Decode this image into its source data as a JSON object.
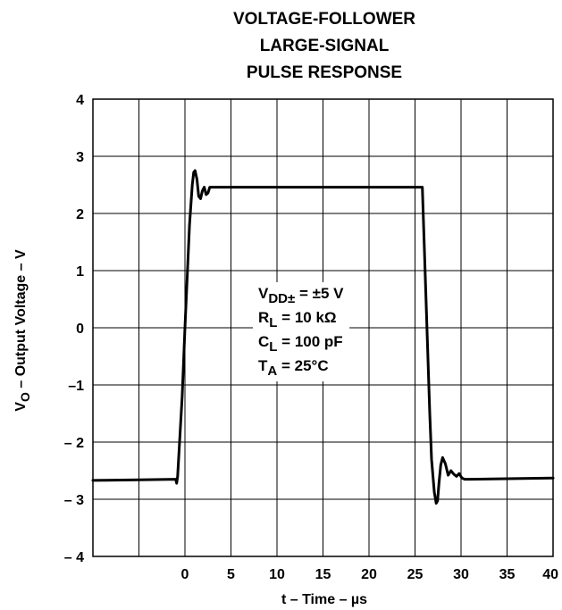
{
  "chart_data": {
    "type": "line",
    "title_lines": [
      "VOLTAGE-FOLLOWER",
      "LARGE-SIGNAL",
      "PULSE RESPONSE"
    ],
    "xlabel": "t – Time – µs",
    "ylabel": "V",
    "ylabel_sub": "O",
    "ylabel_rest": " – Output Voltage – V",
    "xlim": [
      -10,
      40
    ],
    "ylim": [
      -4,
      4
    ],
    "x_ticks": [
      0,
      5,
      10,
      15,
      20,
      25,
      30,
      35,
      40
    ],
    "x_tick_labels": [
      "0",
      "5",
      "10",
      "15",
      "20",
      "25",
      "30",
      "35",
      "40"
    ],
    "y_ticks": [
      -4,
      -3,
      -2,
      -1,
      0,
      1,
      2,
      3,
      4
    ],
    "y_tick_labels": [
      "– 4",
      "– 3",
      "– 2",
      "–1",
      "0",
      "1",
      "2",
      "3",
      "4"
    ],
    "grid": true,
    "grid_x_step": 5,
    "grid_y_step": 1,
    "series": [
      {
        "x": [
          -10,
          -5,
          -1.0,
          -0.9,
          -0.8,
          -0.3,
          0,
          0.5,
          0.8,
          0.95,
          1.1,
          1.3,
          1.5,
          1.7,
          1.9,
          2.1,
          2.3,
          2.5,
          2.7,
          2.9,
          3.1,
          3.5,
          5,
          10,
          15,
          20,
          25.8,
          26.6,
          26.8,
          27.1,
          27.3,
          27.45,
          27.6,
          27.8,
          28.0,
          28.3,
          28.6,
          28.9,
          29.2,
          29.5,
          29.8,
          30.1,
          30.4,
          31,
          35,
          40
        ],
        "y": [
          -2.67,
          -2.66,
          -2.65,
          -2.72,
          -2.6,
          -1.2,
          0,
          1.8,
          2.5,
          2.72,
          2.75,
          2.6,
          2.3,
          2.26,
          2.4,
          2.46,
          2.33,
          2.36,
          2.46,
          2.46,
          2.46,
          2.46,
          2.46,
          2.46,
          2.46,
          2.46,
          2.46,
          -1.5,
          -2.3,
          -2.88,
          -3.07,
          -3.03,
          -2.72,
          -2.4,
          -2.27,
          -2.38,
          -2.58,
          -2.5,
          -2.56,
          -2.6,
          -2.55,
          -2.63,
          -2.65,
          -2.65,
          -2.64,
          -2.63
        ]
      }
    ],
    "annotation": [
      {
        "main": "V",
        "sub": "DD±",
        "rest": " = ±5 V"
      },
      {
        "main": "R",
        "sub": "L",
        "rest": " = 10 kΩ"
      },
      {
        "main": "C",
        "sub": "L",
        "rest": " = 100 pF"
      },
      {
        "main": "T",
        "sub": "A",
        "rest": " = 25°C"
      }
    ],
    "colors": {
      "line": "#000000",
      "grid": "#000000",
      "background": "#ffffff"
    }
  }
}
